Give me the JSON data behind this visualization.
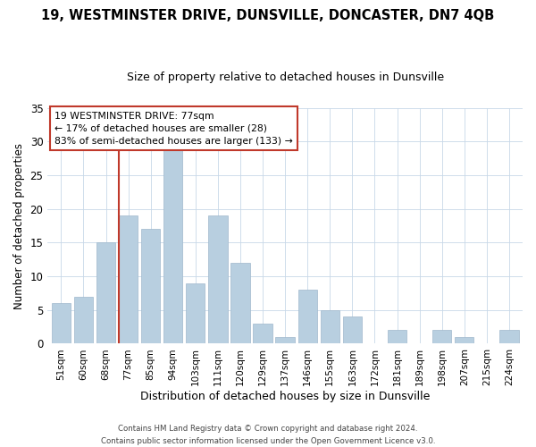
{
  "title": "19, WESTMINSTER DRIVE, DUNSVILLE, DONCASTER, DN7 4QB",
  "subtitle": "Size of property relative to detached houses in Dunsville",
  "xlabel": "Distribution of detached houses by size in Dunsville",
  "ylabel": "Number of detached properties",
  "bar_labels": [
    "51sqm",
    "60sqm",
    "68sqm",
    "77sqm",
    "85sqm",
    "94sqm",
    "103sqm",
    "111sqm",
    "120sqm",
    "129sqm",
    "137sqm",
    "146sqm",
    "155sqm",
    "163sqm",
    "172sqm",
    "181sqm",
    "189sqm",
    "198sqm",
    "207sqm",
    "215sqm",
    "224sqm"
  ],
  "bar_values": [
    6,
    7,
    15,
    19,
    17,
    29,
    9,
    19,
    12,
    3,
    1,
    8,
    5,
    4,
    0,
    2,
    0,
    2,
    1,
    0,
    2
  ],
  "bar_color": "#b8cfe0",
  "vline_bar_index": 3,
  "vline_color": "#c0392b",
  "ylim": [
    0,
    35
  ],
  "yticks": [
    0,
    5,
    10,
    15,
    20,
    25,
    30,
    35
  ],
  "annotation_title": "19 WESTMINSTER DRIVE: 77sqm",
  "annotation_line1": "← 17% of detached houses are smaller (28)",
  "annotation_line2": "83% of semi-detached houses are larger (133) →",
  "annotation_box_color": "#ffffff",
  "annotation_box_edge": "#c0392b",
  "footer_line1": "Contains HM Land Registry data © Crown copyright and database right 2024.",
  "footer_line2": "Contains public sector information licensed under the Open Government Licence v3.0.",
  "background_color": "#ffffff",
  "grid_color": "#c8d8e8",
  "title_fontsize": 10.5,
  "subtitle_fontsize": 9,
  "ylabel_fontsize": 8.5,
  "xlabel_fontsize": 9
}
